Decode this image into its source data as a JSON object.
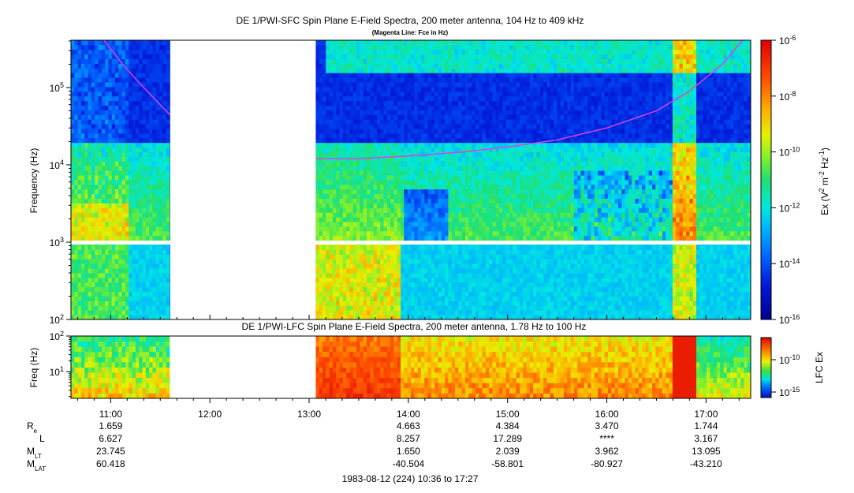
{
  "top_panel": {
    "title": "DE 1/PWI-SFC  Spin Plane E-Field Spectra, 200 meter antenna, 104 Hz to 409 kHz",
    "subtitle": "(Magenta Line: Fce in Hz)",
    "ylabel": "Frequency (Hz)",
    "ytick_labels": [
      "10^2",
      "10^3",
      "10^4",
      "10^5"
    ],
    "colorbar_label": "Ex (V^2 m^-2 Hz^-1)",
    "colorbar_tick_labels": [
      "10^-6",
      "10^-8",
      "10^-10",
      "10^-12",
      "10^-14",
      "10^-16"
    ]
  },
  "bottom_panel": {
    "title": "DE 1/PWI-LFC  Spin Plane E-Field Spectra, 200 meter antenna, 1.78 Hz to 100 Hz",
    "ylabel": "Freq (Hz)",
    "ytick_labels": [
      "10^2",
      "10^1"
    ],
    "colorbar_label": "LFC Ex",
    "colorbar_tick_labels": [
      "10^-10",
      "10^-15"
    ]
  },
  "time_axis": {
    "tick_labels": [
      "11:00",
      "12:00",
      "13:00",
      "14:00",
      "15:00",
      "16:00",
      "17:00"
    ]
  },
  "ephemeris": {
    "rows": [
      {
        "label": "R",
        "sub": "e",
        "values": [
          "1.659",
          "4.663",
          "4.384",
          "3.470",
          "1.744"
        ]
      },
      {
        "label": "L",
        "sub": "",
        "values": [
          "6.627",
          "8.257",
          "17.289",
          "****",
          "3.167"
        ]
      },
      {
        "label": "M",
        "sub": "LT",
        "values": [
          "23.745",
          "1.650",
          "2.039",
          "3.962",
          "13.095"
        ]
      },
      {
        "label": "M",
        "sub": "LAT",
        "values": [
          "60.418",
          "-40.504",
          "-58.801",
          "-80.927",
          "-43.210"
        ]
      }
    ],
    "columns": [
      "11:00",
      "14:00",
      "15:00",
      "16:00",
      "17:00"
    ]
  },
  "footer": "1983-08-12 (224) 10:36 to 17:27",
  "chart_data": {
    "type": "heatmap",
    "panels": [
      {
        "name": "SFC",
        "x_range": [
          "10:36",
          "17:27"
        ],
        "ylim_hz": [
          100,
          409000
        ],
        "y_scale": "log",
        "colorbar_range": [
          1e-16,
          1e-06
        ],
        "colorbar_scale": "log",
        "data_gaps": [
          [
            "11:36",
            "13:04"
          ]
        ],
        "fce_line": {
          "color": "#e040e0",
          "segments": [
            [
              [
                "10:56",
                409000
              ],
              [
                "11:08",
                190000
              ],
              [
                "11:20",
                100000
              ],
              [
                "11:36",
                44000
              ]
            ],
            [
              [
                "13:04",
                12000
              ],
              [
                "13:30",
                12000
              ],
              [
                "14:00",
                13000
              ],
              [
                "14:30",
                14500
              ],
              [
                "15:00",
                17000
              ],
              [
                "15:30",
                21000
              ],
              [
                "16:00",
                30000
              ],
              [
                "16:30",
                50000
              ],
              [
                "16:50",
                90000
              ],
              [
                "17:10",
                200000
              ],
              [
                "17:22",
                409000
              ]
            ]
          ]
        }
      },
      {
        "name": "LFC",
        "x_range": [
          "10:36",
          "17:27"
        ],
        "ylim_hz": [
          1.78,
          100
        ],
        "y_scale": "log",
        "colorbar_range": [
          1e-16,
          1e-08
        ],
        "colorbar_scale": "log",
        "data_gaps": [
          [
            "11:36",
            "13:04"
          ]
        ]
      }
    ]
  }
}
